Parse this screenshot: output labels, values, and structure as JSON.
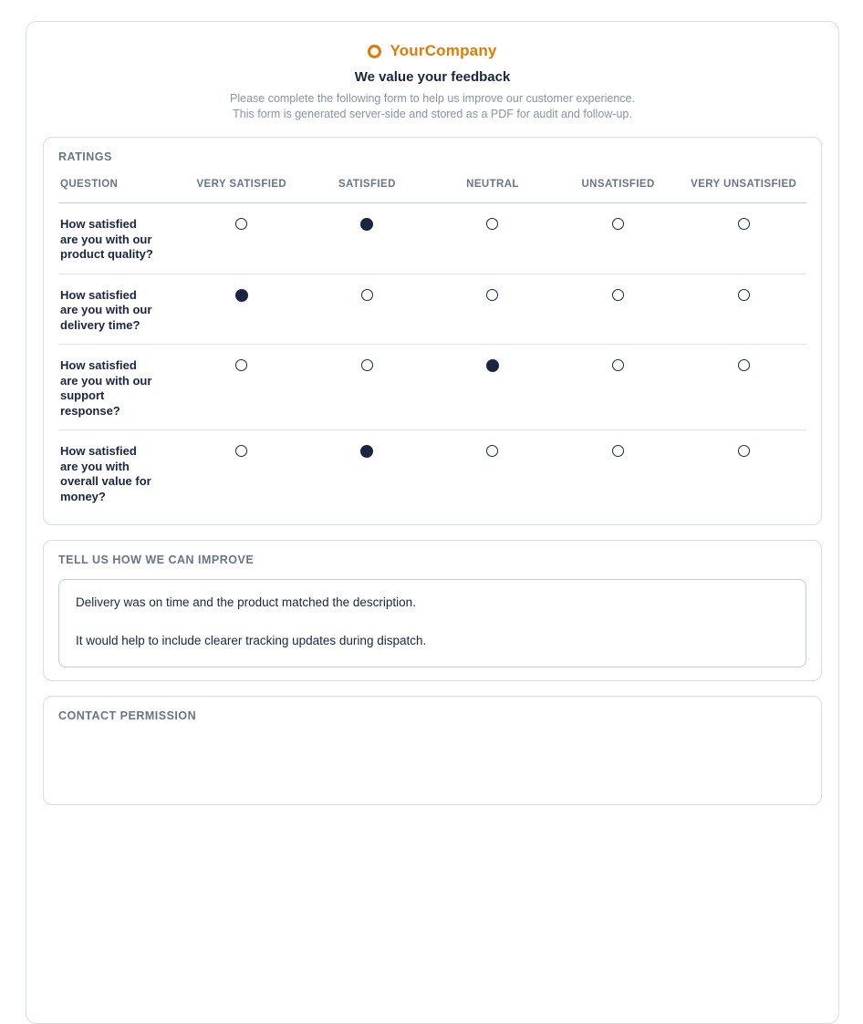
{
  "header": {
    "company": "YourCompany",
    "title": "We value your feedback",
    "subtitle_line1": "Please complete the following form to help us improve our customer experience.",
    "subtitle_line2": "This form is generated server-side and stored as a PDF for audit and follow-up."
  },
  "ratings": {
    "section_title": "RATINGS",
    "columns": [
      "QUESTION",
      "VERY SATISFIED",
      "SATISFIED",
      "NEUTRAL",
      "UNSATISFIED",
      "VERY UNSATISFIED"
    ],
    "options": [
      "VERY SATISFIED",
      "SATISFIED",
      "NEUTRAL",
      "UNSATISFIED",
      "VERY UNSATISFIED"
    ],
    "rows": [
      {
        "question": "How satisfied are you with our product quality?",
        "selected": "SATISFIED",
        "selected_index": 1
      },
      {
        "question": "How satisfied are you with our delivery time?",
        "selected": "VERY SATISFIED",
        "selected_index": 0
      },
      {
        "question": "How satisfied are you with our support response?",
        "selected": "NEUTRAL",
        "selected_index": 2
      },
      {
        "question": "How satisfied are you with overall value for money?",
        "selected": "SATISFIED",
        "selected_index": 1
      }
    ]
  },
  "improve": {
    "section_title": "TELL US HOW WE CAN IMPROVE",
    "text_line1": "Delivery was on time and the product matched the description.",
    "text_line2": "It would help to include clearer tracking updates during dispatch."
  },
  "contact": {
    "section_title": "CONTACT PERMISSION"
  },
  "colors": {
    "accent_orange": "#E07C00",
    "ink_navy": "#1B2540",
    "muted_slate": "#6A7486",
    "subtitle_gray": "#8A93A4",
    "card_border": "#D8DCE3",
    "header_divider": "#C6CCD6",
    "row_divider": "#DFE3E9"
  }
}
